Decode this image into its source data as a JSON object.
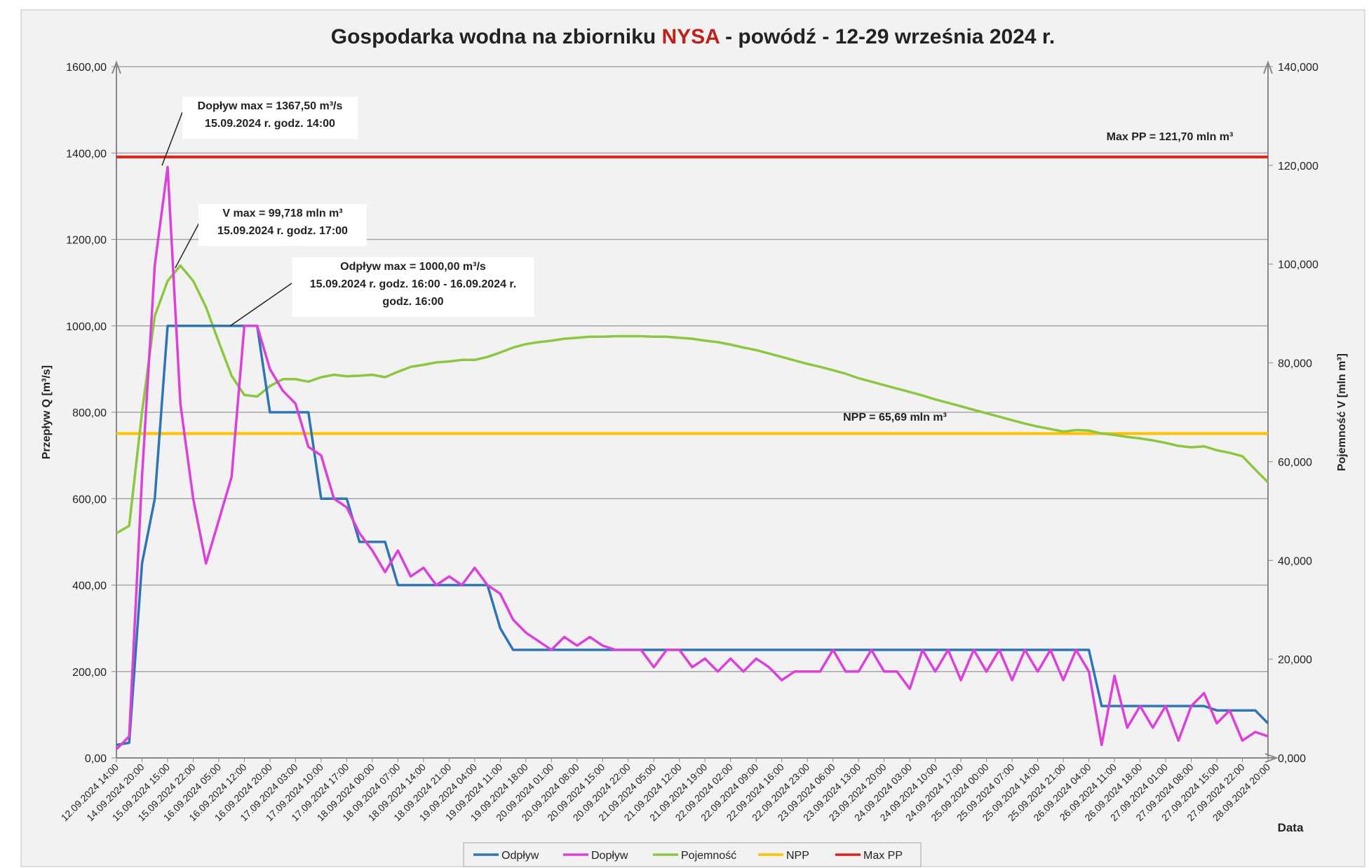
{
  "chart_data": {
    "type": "line",
    "title_parts": [
      "Gospodarka wodna na zbiorniku ",
      "NYSA",
      " - powódź - 12-29 września 2024 r."
    ],
    "title_highlight_color": "#c0201b",
    "xlabel": "Data",
    "ylabel": "Przepływ Q [m³/s]",
    "y2label": "Pojemność V [mln m³]",
    "categories": [
      "12.09.2024 14:00",
      null,
      "14.09.2024 20:00",
      null,
      "15.09.2024 15:00",
      null,
      "15.09.2024 22:00",
      null,
      "16.09.2024 05:00",
      null,
      "16.09.2024 12:00",
      null,
      "16.09.2024 20:00",
      null,
      "17.09.2024 03:00",
      null,
      "17.09.2024 10:00",
      null,
      "17.09.2024 17:00",
      null,
      "18.09.2024 00:00",
      null,
      "18.09.2024 07:00",
      null,
      "18.09.2024 14:00",
      null,
      "18.09.2024 21:00",
      null,
      "19.09.2024 04:00",
      null,
      "19.09.2024 11:00",
      null,
      "19.09.2024 18:00",
      null,
      "20.09.2024 01:00",
      null,
      "20.09.2024 08:00",
      null,
      "20.09.2024 15:00",
      null,
      "20.09.2024 22:00",
      null,
      "21.09.2024 05:00",
      null,
      "21.09.2024 12:00",
      null,
      "21.09.2024 19:00",
      null,
      "22.09.2024 02:00",
      null,
      "22.09.2024 09:00",
      null,
      "22.09.2024 16:00",
      null,
      "22.09.2024 23:00",
      null,
      "23.09.2024 06:00",
      null,
      "23.09.2024 13:00",
      null,
      "23.09.2024 20:00",
      null,
      "24.09.2024 03:00",
      null,
      "24.09.2024 10:00",
      null,
      "24.09.2024 17:00",
      null,
      "25.09.2024 00:00",
      null,
      "25.09.2024 07:00",
      null,
      "25.09.2024 14:00",
      null,
      "25.09.2024 21:00",
      null,
      "26.09.2024 04:00",
      null,
      "26.09.2024 11:00",
      null,
      "26.09.2024 18:00",
      null,
      "27.09.2024 01:00",
      null,
      "27.09.2024 08:00",
      null,
      "27.09.2024 15:00",
      null,
      "27.09.2024 22:00",
      null,
      "28.09.2024 20:00"
    ],
    "series": [
      {
        "name": "Odpływ",
        "color": "#2e75b6",
        "values": [
          30,
          35,
          450,
          600,
          1000,
          1000,
          1000,
          1000,
          1000,
          1000,
          1000,
          1000,
          800,
          800,
          800,
          800,
          600,
          600,
          600,
          500,
          500,
          500,
          400,
          400,
          400,
          400,
          400,
          400,
          400,
          400,
          300,
          250,
          250,
          250,
          250,
          250,
          250,
          250,
          250,
          250,
          250,
          250,
          250,
          250,
          250,
          250,
          250,
          250,
          250,
          250,
          250,
          250,
          250,
          250,
          250,
          250,
          250,
          250,
          250,
          250,
          250,
          250,
          250,
          250,
          250,
          250,
          250,
          250,
          250,
          250,
          250,
          250,
          250,
          250,
          250,
          250,
          250,
          120,
          120,
          120,
          120,
          120,
          120,
          120,
          120,
          120,
          110,
          110,
          110,
          110,
          80
        ]
      },
      {
        "name": "Dopływ",
        "color": "#dd3fdd",
        "values": [
          20,
          50,
          650,
          1140,
          1367.5,
          820,
          600,
          450,
          550,
          650,
          1000,
          1000,
          900,
          850,
          820,
          720,
          700,
          600,
          580,
          520,
          480,
          430,
          480,
          420,
          440,
          400,
          420,
          400,
          440,
          400,
          380,
          320,
          290,
          270,
          250,
          280,
          260,
          280,
          260,
          250,
          250,
          250,
          210,
          250,
          250,
          210,
          230,
          200,
          230,
          200,
          230,
          210,
          180,
          200,
          200,
          200,
          250,
          200,
          200,
          250,
          200,
          200,
          160,
          250,
          200,
          250,
          180,
          250,
          200,
          250,
          180,
          250,
          200,
          250,
          180,
          250,
          200,
          30,
          190,
          70,
          120,
          70,
          120,
          40,
          120,
          150,
          80,
          110,
          40,
          60,
          50
        ]
      },
      {
        "name": "Pojemność",
        "color": "#8dc63f",
        "axis": "y2",
        "values": [
          45.5,
          47,
          70,
          89.5,
          96.6,
          99.718,
          96.6,
          91.3,
          84.2,
          77.4,
          73.5,
          73.2,
          75.3,
          76.7,
          76.7,
          76.2,
          77.1,
          77.6,
          77.3,
          77.4,
          77.6,
          77.1,
          78.2,
          79.2,
          79.6,
          80.1,
          80.3,
          80.6,
          80.6,
          81.2,
          82.1,
          83.1,
          83.8,
          84.2,
          84.5,
          84.9,
          85.1,
          85.3,
          85.3,
          85.4,
          85.4,
          85.4,
          85.3,
          85.3,
          85.1,
          84.9,
          84.5,
          84.2,
          83.7,
          83.1,
          82.6,
          81.9,
          81.2,
          80.5,
          79.8,
          79.2,
          78.5,
          77.8,
          76.9,
          76.2,
          75.5,
          74.8,
          74.1,
          73.4,
          72.6,
          71.9,
          71.2,
          70.5,
          69.8,
          69.1,
          68.4,
          67.7,
          67.1,
          66.6,
          66.1,
          66.4,
          66.3,
          65.7,
          65.4,
          65.0,
          64.7,
          64.3,
          63.8,
          63.2,
          62.9,
          63.1,
          62.3,
          61.8,
          61.1,
          58.4,
          55.8
        ]
      }
    ],
    "reference_lines": [
      {
        "name": "NPP",
        "color": "#ffc000",
        "axis": "y2",
        "value": 65.69,
        "label": "NPP = 65,69 mln m³",
        "label_color": "#ed8a2d"
      },
      {
        "name": "Max PP",
        "color": "#e0201b",
        "axis": "y2",
        "value": 121.7,
        "label": "Max PP = 121,70 mln m³",
        "label_color": "#e0201b"
      }
    ],
    "annotations": [
      {
        "lines": [
          "Dopływ max = 1367,50 m³/s",
          "15.09.2024 r. godz. 14:00"
        ],
        "color": "#cc33cc"
      },
      {
        "lines": [
          "V max = 99,718 mln m³",
          "15.09.2024 r. godz. 17:00"
        ],
        "color": "#6a9a2a"
      },
      {
        "lines": [
          "Odpływ max = 1000,00 m³/s",
          "15.09.2024 r. godz. 16:00 - 16.09.2024 r.",
          "godz. 16:00"
        ],
        "color": "#2a5f86"
      }
    ],
    "ylim": [
      0,
      1600
    ],
    "yticks": [
      {
        "value": 0,
        "label": "0,00"
      },
      {
        "value": 200,
        "label": "200,00"
      },
      {
        "value": 400,
        "label": "400,00"
      },
      {
        "value": 600,
        "label": "600,00"
      },
      {
        "value": 800,
        "label": "800,00"
      },
      {
        "value": 1000,
        "label": "1000,00"
      },
      {
        "value": 1200,
        "label": "1200,00"
      },
      {
        "value": 1400,
        "label": "1400,00"
      },
      {
        "value": 1600,
        "label": "1600,00"
      }
    ],
    "y2lim": [
      0,
      140
    ],
    "y2ticks": [
      {
        "value": 0,
        "label": "0,000"
      },
      {
        "value": 20,
        "label": "20,000"
      },
      {
        "value": 40,
        "label": "40,000"
      },
      {
        "value": 60,
        "label": "60,000"
      },
      {
        "value": 80,
        "label": "80,000"
      },
      {
        "value": 100,
        "label": "100,000"
      },
      {
        "value": 120,
        "label": "120,000"
      },
      {
        "value": 140,
        "label": "140,000"
      }
    ],
    "grid": true,
    "legend": "bottom"
  }
}
